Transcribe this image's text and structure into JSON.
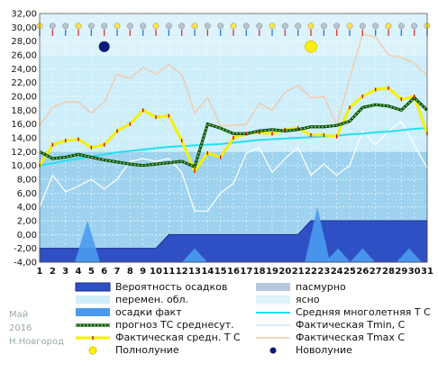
{
  "meta": {
    "month": "Май",
    "year": "2016",
    "city": "Н.Новгород"
  },
  "chart_data": {
    "type": "line",
    "ylim": [
      -4,
      32
    ],
    "yticks": [
      "-4,00",
      "-2,00",
      "0,00",
      "2,00",
      "4,00",
      "6,00",
      "8,00",
      "10,00",
      "12,00",
      "14,00",
      "16,00",
      "18,00",
      "20,00",
      "22,00",
      "24,00",
      "26,00",
      "28,00",
      "30,00",
      "32,00"
    ],
    "x": [
      "1",
      "2",
      "3",
      "4",
      "5",
      "6",
      "7",
      "8",
      "9",
      "10",
      "11",
      "12",
      "13",
      "14",
      "15",
      "16",
      "17",
      "18",
      "19",
      "20",
      "21",
      "22",
      "23",
      "24",
      "25",
      "26",
      "27",
      "28",
      "29",
      "30",
      "31"
    ],
    "series": [
      {
        "name": "Фактическая Tmax, С",
        "color": "#f3c9a8",
        "values": [
          15.8,
          18.4,
          19.2,
          19.2,
          17.6,
          19.2,
          23.2,
          22.6,
          24.2,
          23.2,
          24.6,
          23.2,
          17.6,
          19.8,
          15.8,
          15.8,
          16.0,
          19.0,
          18.0,
          20.6,
          21.6,
          19.8,
          20.0,
          15.8,
          22.6,
          29.0,
          28.6,
          26.0,
          25.6,
          24.8,
          23.0
        ]
      },
      {
        "name": "Фактическая Tmin, С",
        "color": "#cfe8f7",
        "values": [
          4.0,
          8.6,
          6.2,
          7.0,
          8.0,
          6.6,
          8.0,
          10.6,
          11.0,
          10.6,
          11.0,
          9.0,
          3.4,
          3.4,
          6.0,
          7.4,
          11.8,
          12.6,
          9.0,
          11.0,
          12.6,
          8.6,
          10.2,
          8.6,
          10.0,
          15.0,
          13.0,
          15.0,
          16.4,
          13.0,
          9.6
        ]
      },
      {
        "name": "Средняя многолетняя Т С",
        "color": "#22e0f0",
        "values": [
          10.0,
          10.3,
          10.7,
          11.0,
          11.3,
          11.6,
          11.9,
          12.1,
          12.3,
          12.5,
          12.7,
          12.8,
          12.9,
          13.0,
          13.1,
          13.3,
          13.5,
          13.7,
          13.8,
          13.9,
          14.0,
          14.1,
          14.2,
          14.3,
          14.5,
          14.6,
          14.8,
          14.9,
          15.1,
          15.3,
          15.4
        ]
      },
      {
        "name": "прогноз ТС среднесут.",
        "color": "#2a8f20",
        "values": [
          12.0,
          11.0,
          11.2,
          11.6,
          11.2,
          10.8,
          10.5,
          10.2,
          10.0,
          10.2,
          10.4,
          10.6,
          9.8,
          16.0,
          15.4,
          14.6,
          14.6,
          15.0,
          15.2,
          15.0,
          15.2,
          15.6,
          15.6,
          15.8,
          16.4,
          18.4,
          18.8,
          18.6,
          18.0,
          19.8,
          18.0
        ]
      },
      {
        "name": "Фактическая средн. Т С",
        "color": "#f5f000",
        "values": [
          10.0,
          13.0,
          13.6,
          13.8,
          12.6,
          13.0,
          15.0,
          16.0,
          18.0,
          17.0,
          17.2,
          13.6,
          9.2,
          11.8,
          11.2,
          14.0,
          14.6,
          14.8,
          14.6,
          15.2,
          15.4,
          14.4,
          14.4,
          14.2,
          18.4,
          20.0,
          21.0,
          21.2,
          19.6,
          20.0,
          14.6
        ]
      },
      {
        "name": "осадки факт",
        "color": "#4a9bf0",
        "values": [
          -4,
          -4,
          -4,
          -4,
          -4,
          -4,
          -4,
          -4,
          -4,
          -4,
          -4,
          -4,
          -4,
          -4,
          -4,
          -4,
          -4,
          -4,
          -4,
          -4,
          -4,
          -4,
          -4,
          -4,
          -4,
          -4,
          -4,
          -4,
          -4,
          -4,
          -4
        ]
      },
      {
        "name": "Вероятность осадков",
        "color": "#2f4fc4",
        "values": [
          -2,
          -2,
          -2,
          -2,
          -2,
          -2,
          -2,
          -2,
          -2,
          -2,
          0,
          0,
          0,
          0,
          0,
          0,
          0,
          0,
          0,
          0,
          0,
          2,
          2,
          2,
          2,
          2,
          2,
          2,
          2,
          2,
          2
        ]
      }
    ],
    "precip_fact_peaks": [
      {
        "x": 4.7,
        "value": 2
      },
      {
        "x": 13.0,
        "value": -2
      },
      {
        "x": 22.5,
        "value": 4
      },
      {
        "x": 24.1,
        "value": -2
      },
      {
        "x": 26.0,
        "value": -2
      },
      {
        "x": 29.6,
        "value": -2
      }
    ],
    "full_moon_day": 22,
    "new_moon_day": 6,
    "legend": [
      {
        "label": "Вероятность осадков",
        "kind": "box-dark"
      },
      {
        "label": "пасмурно",
        "kind": "box-grey"
      },
      {
        "label": "перемен. обл.",
        "kind": "box-light"
      },
      {
        "label": "ясно",
        "kind": "box-pale"
      },
      {
        "label": "осадки факт",
        "kind": "box-precip"
      },
      {
        "label": "Средняя многолетняя Т С",
        "kind": "line-cyan"
      },
      {
        "label": "прогноз ТС среднесут.",
        "kind": "line-green"
      },
      {
        "label": "Фактическая Tmin, С",
        "kind": "line-tmin"
      },
      {
        "label": "Фактическая средн. Т С",
        "kind": "line-yellow"
      },
      {
        "label": "Фактическая Tmax С",
        "kind": "line-tmax"
      },
      {
        "label": "Полнолуние",
        "kind": "dot-yellow"
      },
      {
        "label": "Новолуние",
        "kind": "dot-navy"
      }
    ]
  }
}
